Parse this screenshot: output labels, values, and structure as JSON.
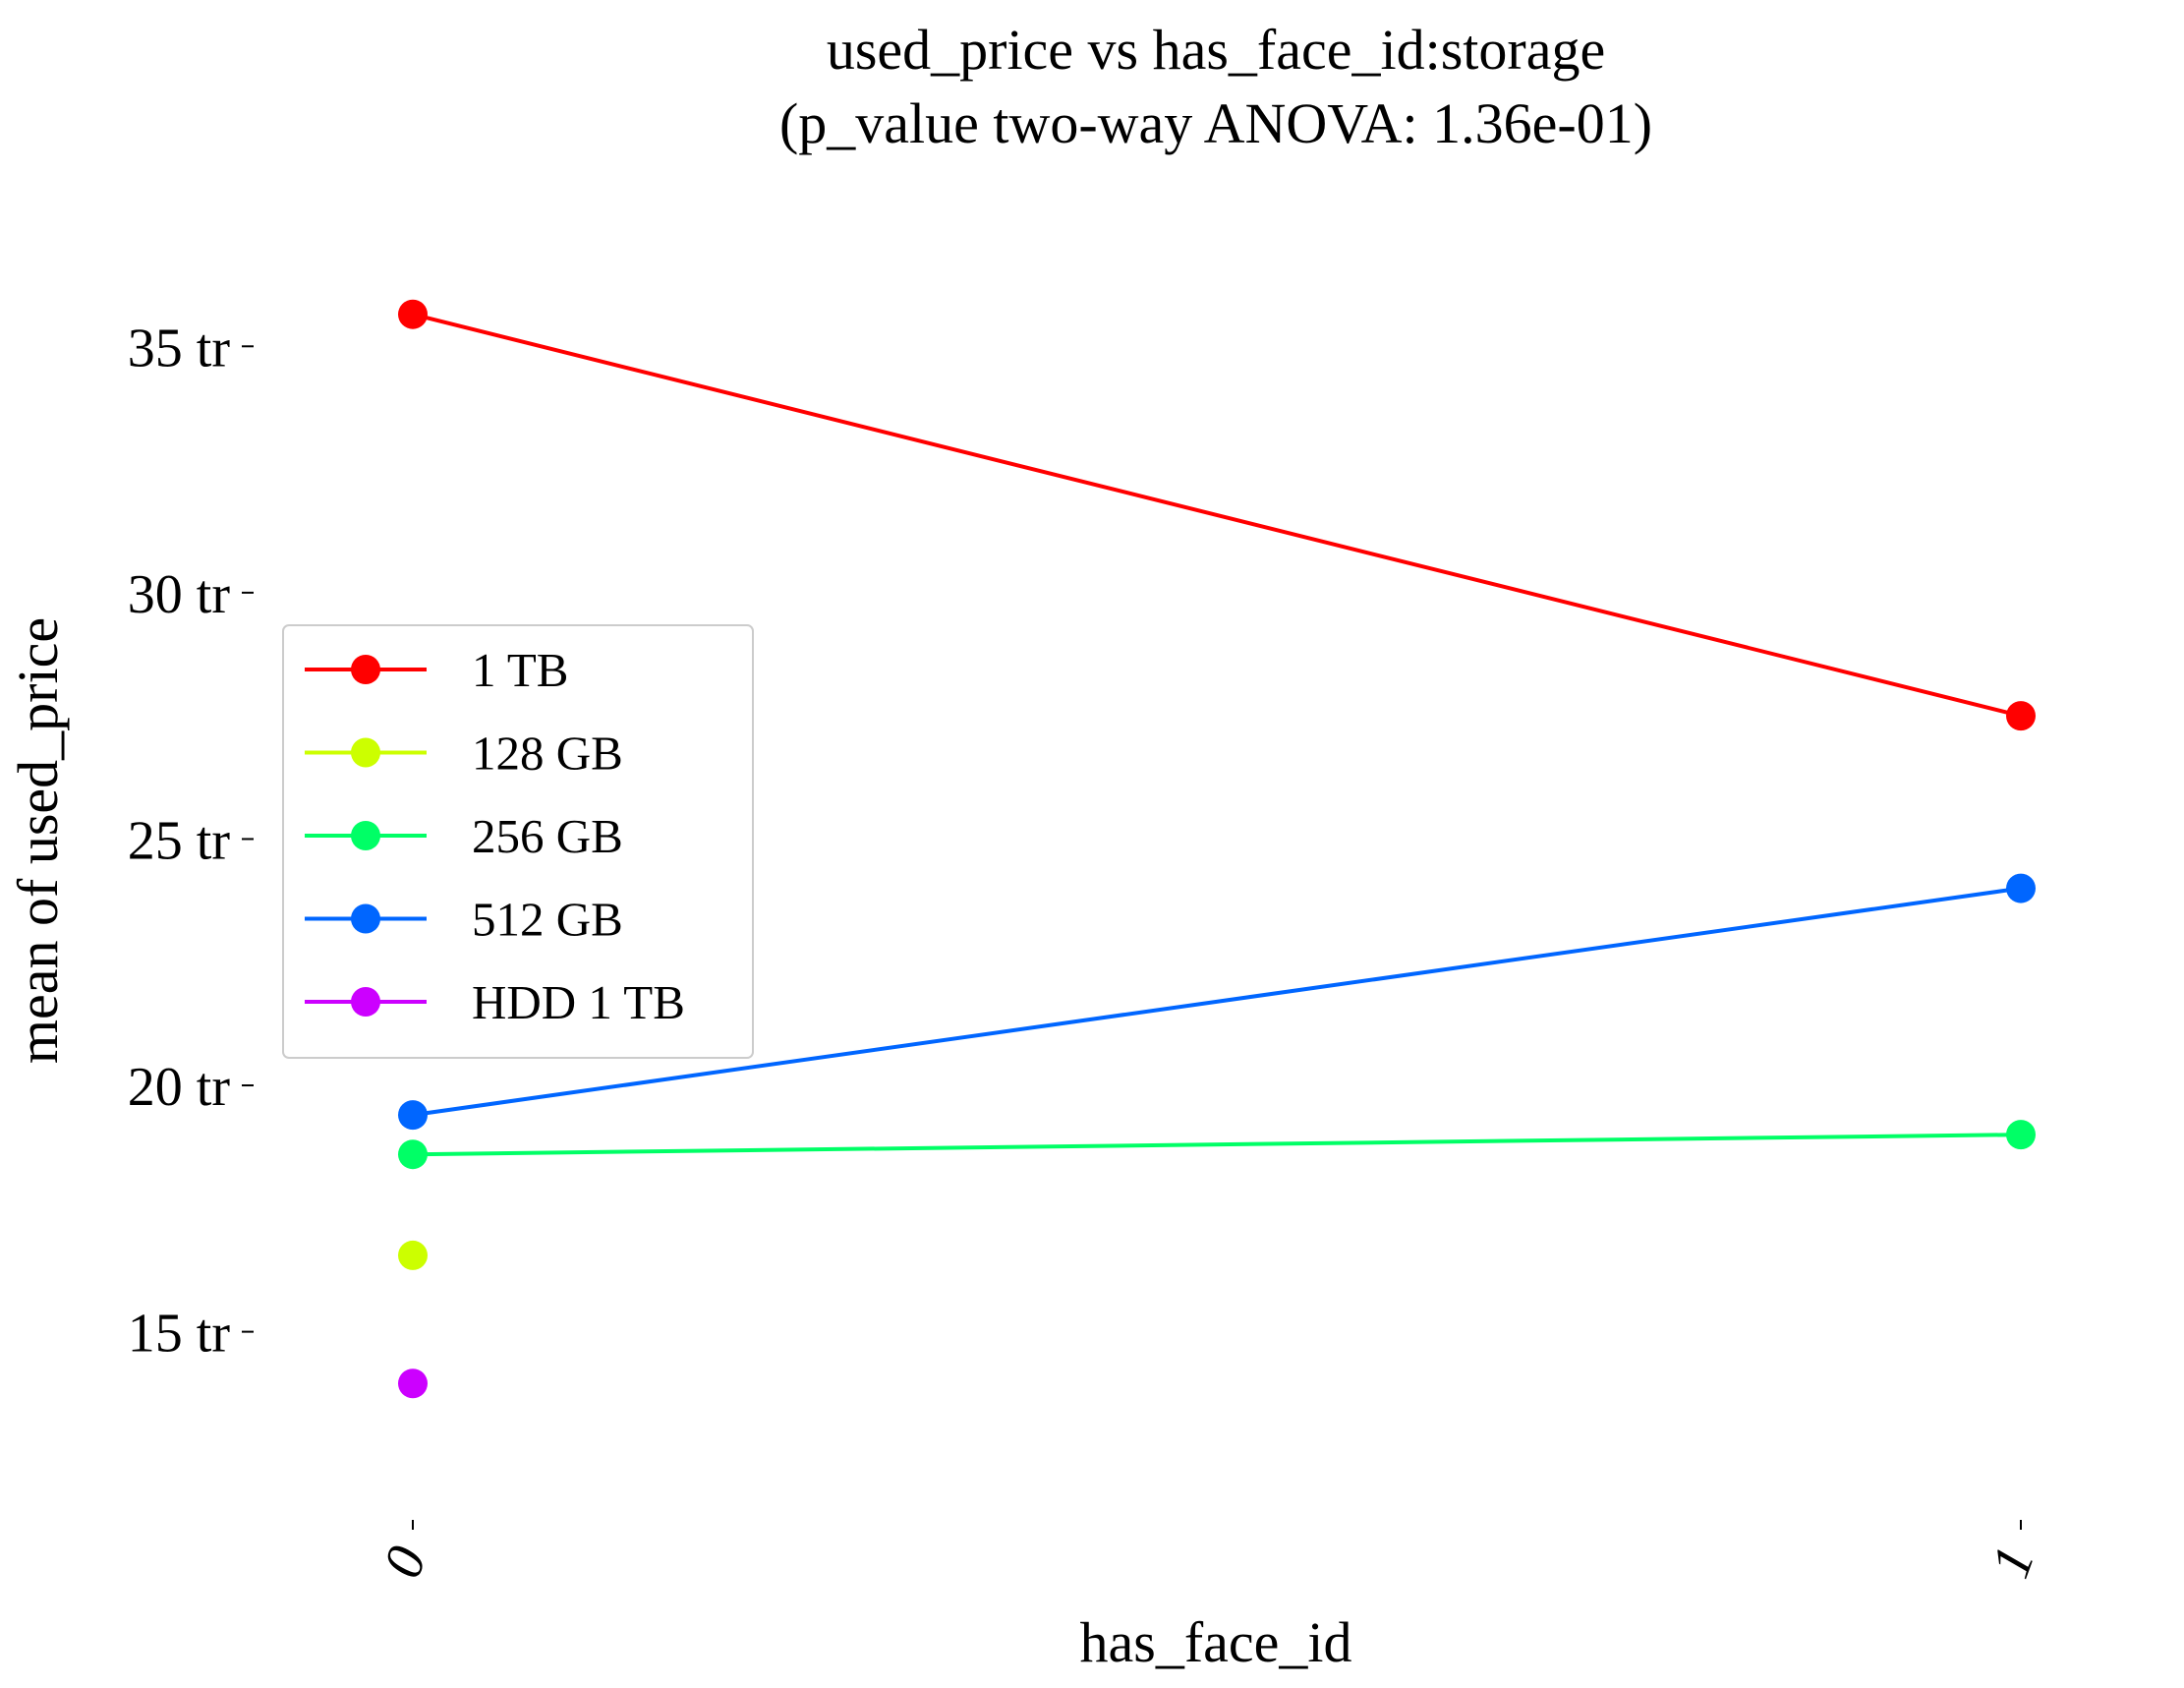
{
  "chart_data": {
    "type": "line",
    "title": "used_price vs has_face_id:storage",
    "subtitle": "(p_value two-way ANOVA: 1.36e-01)",
    "xlabel": "has_face_id",
    "ylabel": "mean of used_price",
    "categories": [
      "0",
      "1"
    ],
    "yticks": [
      {
        "value": 15,
        "label": "15 tr"
      },
      {
        "value": 20,
        "label": "20 tr"
      },
      {
        "value": 25,
        "label": "25 tr"
      },
      {
        "value": 30,
        "label": "30 tr"
      },
      {
        "value": 35,
        "label": "35 tr"
      }
    ],
    "ylim": [
      11.7,
      37.4
    ],
    "grid": false,
    "legend_position": "center-left",
    "series": [
      {
        "name": "1 TB",
        "color": "#ff0000",
        "values": [
          35.65,
          27.5
        ]
      },
      {
        "name": "128 GB",
        "color": "#ccff00",
        "values": [
          16.55,
          null
        ]
      },
      {
        "name": "256 GB",
        "color": "#00ff66",
        "values": [
          18.6,
          19.0
        ]
      },
      {
        "name": "512 GB",
        "color": "#0066ff",
        "values": [
          19.4,
          24.0
        ]
      },
      {
        "name": "HDD 1 TB",
        "color": "#cc00ff",
        "values": [
          13.95,
          null
        ]
      }
    ]
  }
}
